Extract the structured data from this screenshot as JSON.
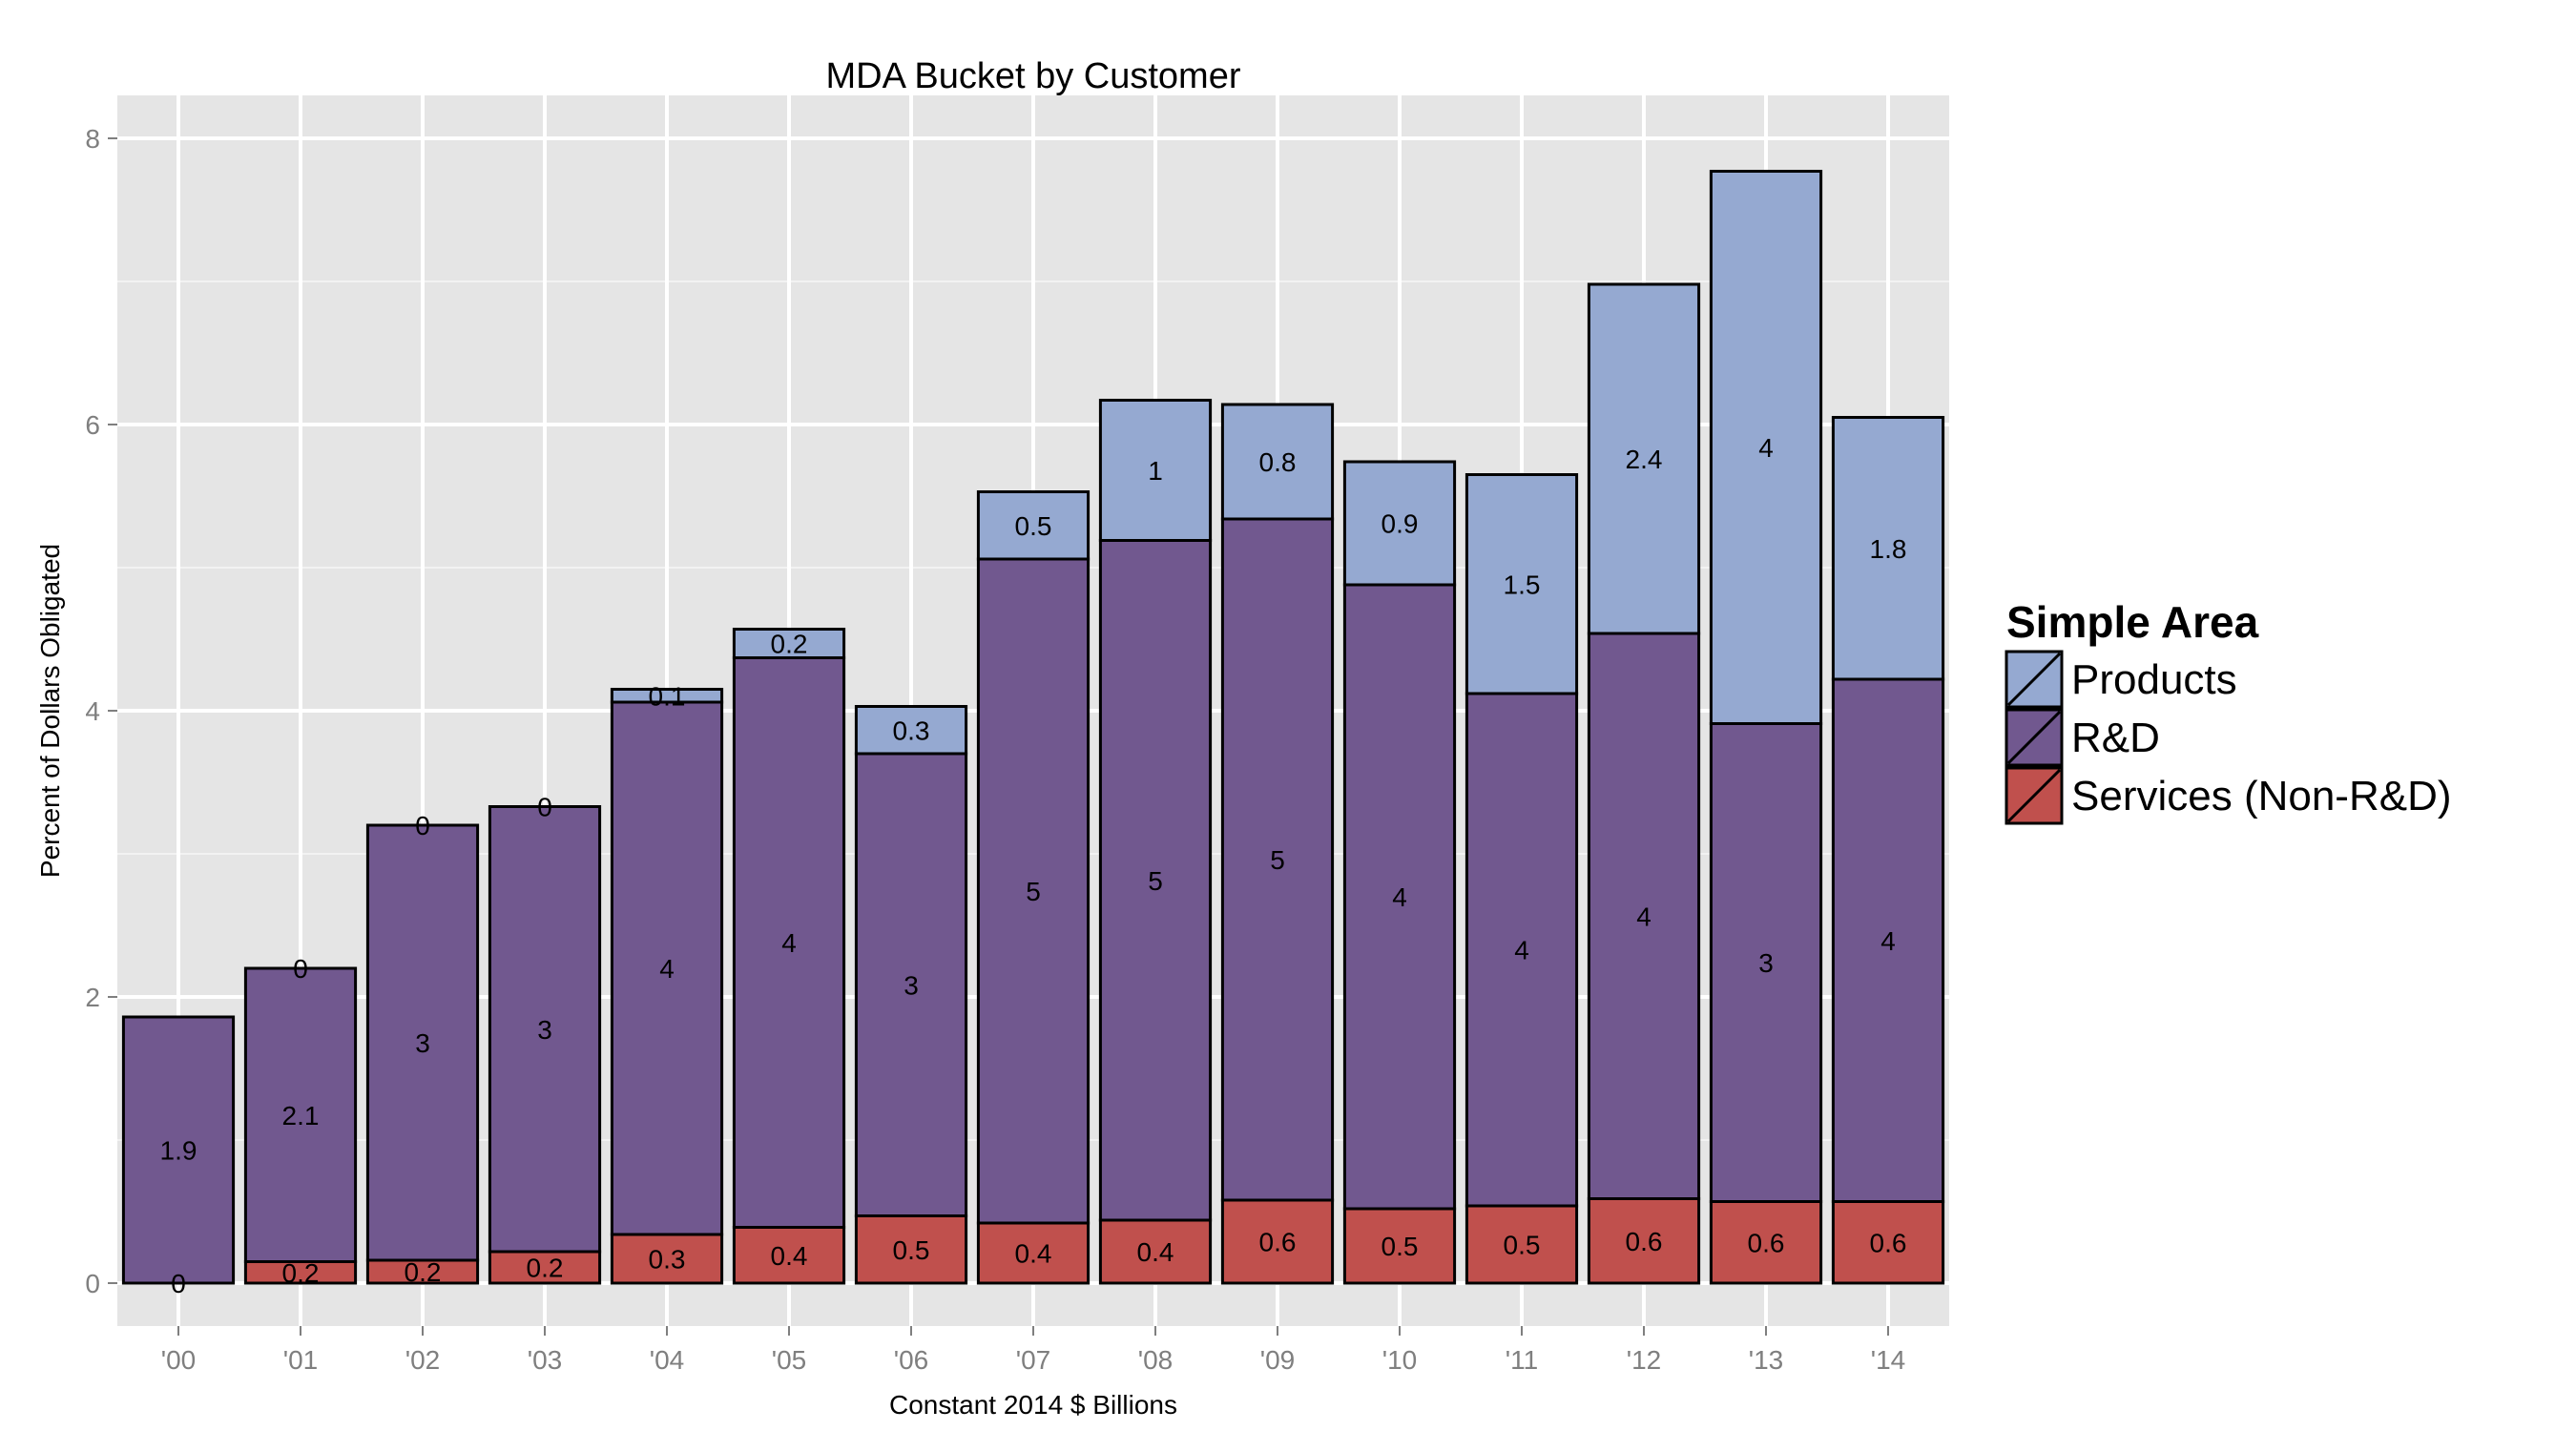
{
  "chart_data": {
    "type": "bar",
    "stacked": true,
    "title": "MDA Bucket by Customer",
    "xlabel": "Constant 2014 $ Billions",
    "ylabel": "Percent of Dollars Obligated",
    "ylim": [
      -0.3,
      8.3
    ],
    "yticks": [
      0,
      2,
      4,
      6,
      8
    ],
    "grid": true,
    "legend_position": "right",
    "legend_title": "Simple Area",
    "categories": [
      "'00",
      "'01",
      "'02",
      "'03",
      "'04",
      "'05",
      "'06",
      "'07",
      "'08",
      "'09",
      "'10",
      "'11",
      "'12",
      "'13",
      "'14"
    ],
    "series": [
      {
        "name": "Services (Non-R&D)",
        "color": "#C0504D",
        "values": [
          0.0,
          0.15,
          0.16,
          0.22,
          0.34,
          0.39,
          0.47,
          0.42,
          0.44,
          0.58,
          0.52,
          0.54,
          0.59,
          0.57,
          0.57
        ],
        "labels": [
          "0",
          "0.2",
          "0.2",
          "0.2",
          "0.3",
          "0.4",
          "0.5",
          "0.4",
          "0.4",
          "0.6",
          "0.5",
          "0.5",
          "0.6",
          "0.6",
          "0.6"
        ]
      },
      {
        "name": "R&D",
        "color": "#71588F",
        "values": [
          1.86,
          2.05,
          3.04,
          3.11,
          3.72,
          3.98,
          3.23,
          4.64,
          4.75,
          4.76,
          4.36,
          3.58,
          3.95,
          3.34,
          3.65
        ],
        "labels": [
          "1.9",
          "2.1",
          "3",
          "3",
          "4",
          "4",
          "3",
          "5",
          "5",
          "5",
          "4",
          "4",
          "4",
          "3",
          "4"
        ]
      },
      {
        "name": "Products",
        "color": "#95A9D1",
        "values": [
          0.0,
          0.0,
          0.0,
          0.0,
          0.09,
          0.2,
          0.33,
          0.47,
          0.98,
          0.8,
          0.86,
          1.53,
          2.44,
          3.86,
          1.83
        ],
        "labels": [
          "",
          "0",
          "0",
          "0",
          "0.1",
          "0.2",
          "0.3",
          "0.5",
          "1",
          "0.8",
          "0.9",
          "1.5",
          "2.4",
          "4",
          "1.8"
        ]
      }
    ]
  }
}
